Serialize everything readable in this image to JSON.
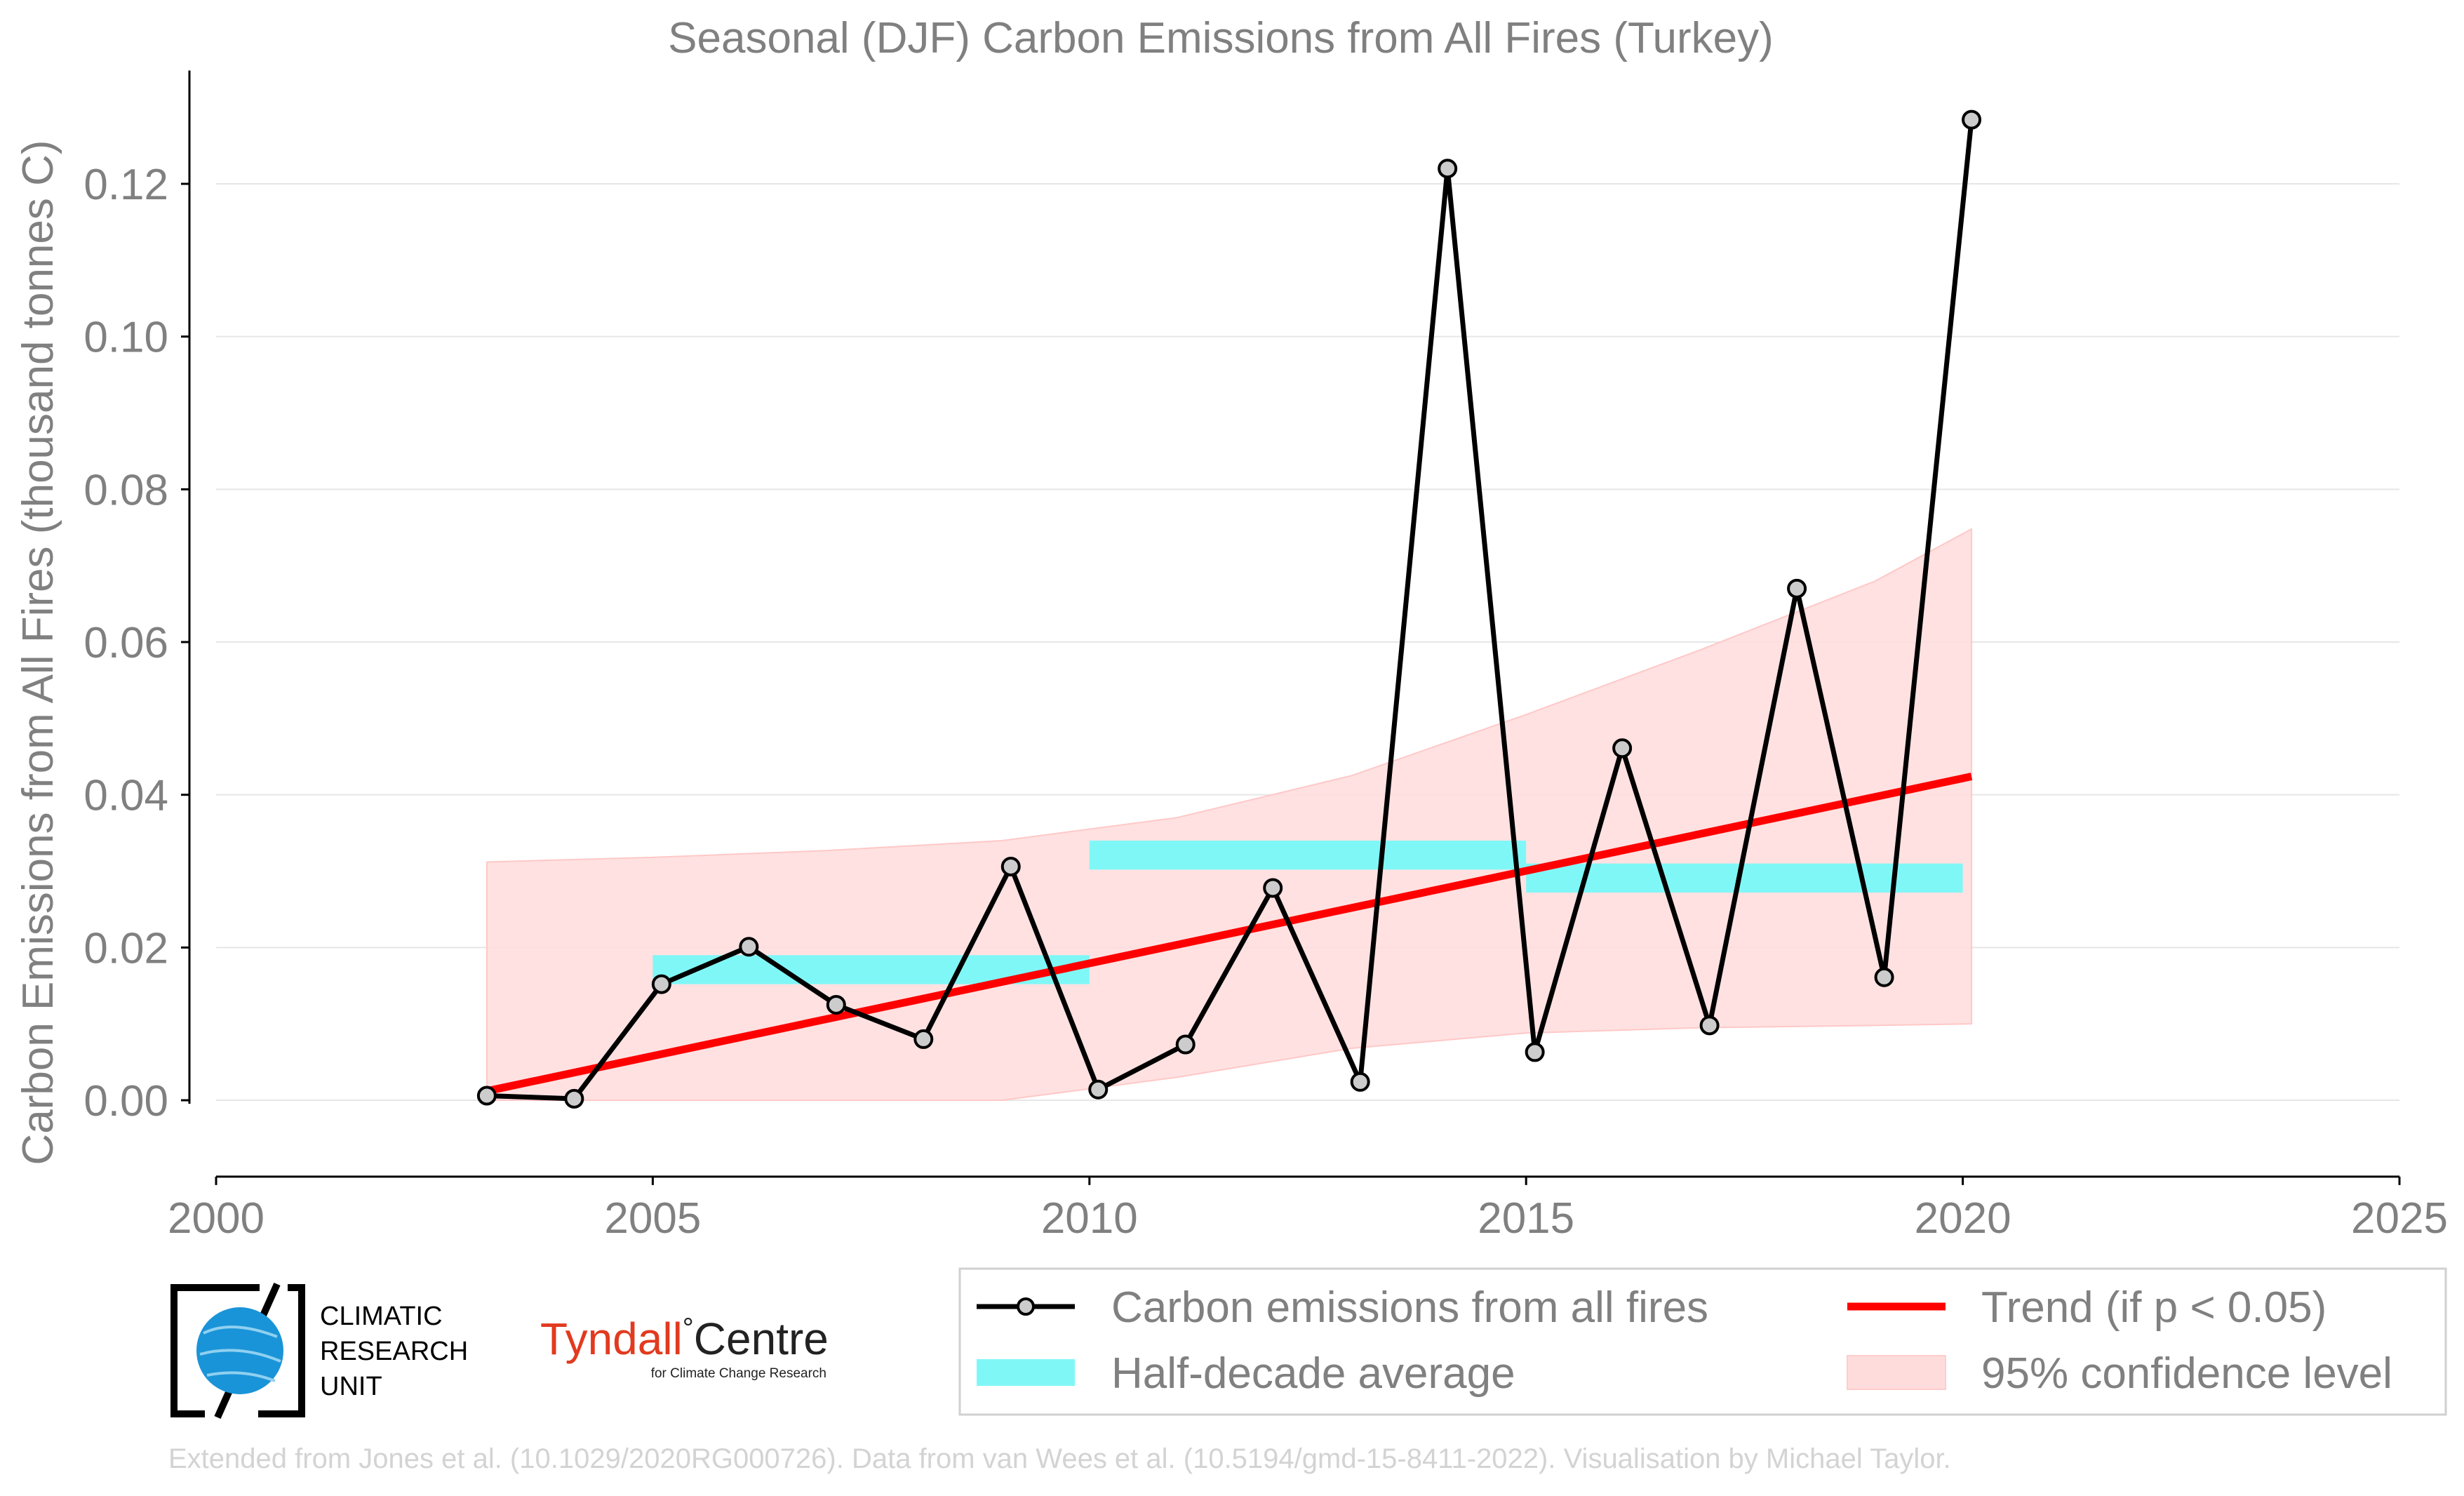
{
  "chart_data": {
    "type": "line",
    "title": "Seasonal (DJF) Carbon Emissions from All Fires (Turkey)",
    "xlabel": "",
    "ylabel": "Carbon Emissions from All Fires (thousand tonnes C)",
    "xlim": [
      2000,
      2025
    ],
    "ylim": [
      -0.01,
      0.133
    ],
    "x_ticks": [
      2000,
      2005,
      2010,
      2015,
      2020,
      2025
    ],
    "x_tick_labels": [
      "2000",
      "2005",
      "2010",
      "2015",
      "2020",
      "2025"
    ],
    "y_ticks": [
      0.0,
      0.02,
      0.04,
      0.06,
      0.08,
      0.1,
      0.12
    ],
    "y_tick_labels": [
      "0.00",
      "0.02",
      "0.04",
      "0.06",
      "0.08",
      "0.10",
      "0.12"
    ],
    "grid": "horizontal",
    "legend_position": "bottom-right",
    "series": [
      {
        "name": "Carbon emissions from all fires",
        "x": [
          2003.1,
          2004.1,
          2005.1,
          2006.1,
          2007.1,
          2008.1,
          2009.1,
          2010.1,
          2011.1,
          2012.1,
          2013.1,
          2014.1,
          2015.1,
          2016.1,
          2017.1,
          2018.1,
          2019.1,
          2020.1
        ],
        "values": [
          0.0006,
          0.0002,
          0.0152,
          0.0201,
          0.0125,
          0.008,
          0.0306,
          0.0014,
          0.0073,
          0.0278,
          0.0024,
          0.122,
          0.0063,
          0.0461,
          0.0098,
          0.067,
          0.0161,
          0.1284
        ],
        "color": "#000000"
      },
      {
        "name": "Trend (if p < 0.05)",
        "x": [
          2003.1,
          2020.1
        ],
        "values": [
          0.0012,
          0.0424
        ],
        "color": "#ff0000"
      },
      {
        "name": "Half-decade average",
        "segments": [
          {
            "x": [
              2005.0,
              2010.0
            ],
            "value": 0.0171
          },
          {
            "x": [
              2010.0,
              2015.0
            ],
            "value": 0.0321
          },
          {
            "x": [
              2015.0,
              2020.0
            ],
            "value": 0.0291
          }
        ],
        "color": "#80f7f7"
      },
      {
        "name": "95% confidence level",
        "x": [
          2003.1,
          2005.0,
          2007.0,
          2009.0,
          2011.0,
          2013.0,
          2015.0,
          2017.0,
          2019.0,
          2020.1
        ],
        "upper": [
          0.0312,
          0.0318,
          0.0327,
          0.034,
          0.037,
          0.0425,
          0.0505,
          0.059,
          0.068,
          0.0748
        ],
        "lower": [
          0.0,
          0.0,
          0.0,
          0.0,
          0.003,
          0.0068,
          0.0088,
          0.0095,
          0.0098,
          0.01
        ],
        "color": "#ffdcdc"
      }
    ]
  },
  "legend": {
    "items": [
      {
        "label": "Carbon emissions from all fires"
      },
      {
        "label": "Trend (if p < 0.05)"
      },
      {
        "label": "Half-decade average"
      },
      {
        "label": "95% confidence level"
      }
    ]
  },
  "logos": {
    "cru_line1": "CLIMATIC",
    "cru_line2": "RESEARCH",
    "cru_line3": "UNIT",
    "tyndall_name": "Tyndall",
    "tyndall_degree": "°",
    "tyndall_centre": "Centre",
    "tyndall_sub": "for Climate Change Research"
  },
  "credit": "Extended from Jones et al. (10.1029/2020RG000726). Data from van Wees et al. (10.5194/gmd-15-8411-2022). Visualisation by Michael Taylor.",
  "colors": {
    "line": "#000000",
    "marker_fill": "#cccccc",
    "trend": "#ff0000",
    "half_decade": "#80f7f7",
    "confidence": "#ffdcdc",
    "text": "#808080",
    "credit": "#d3d3d3",
    "tyndall_red": "#e23a1f",
    "cru_blue": "#1a94d8"
  }
}
